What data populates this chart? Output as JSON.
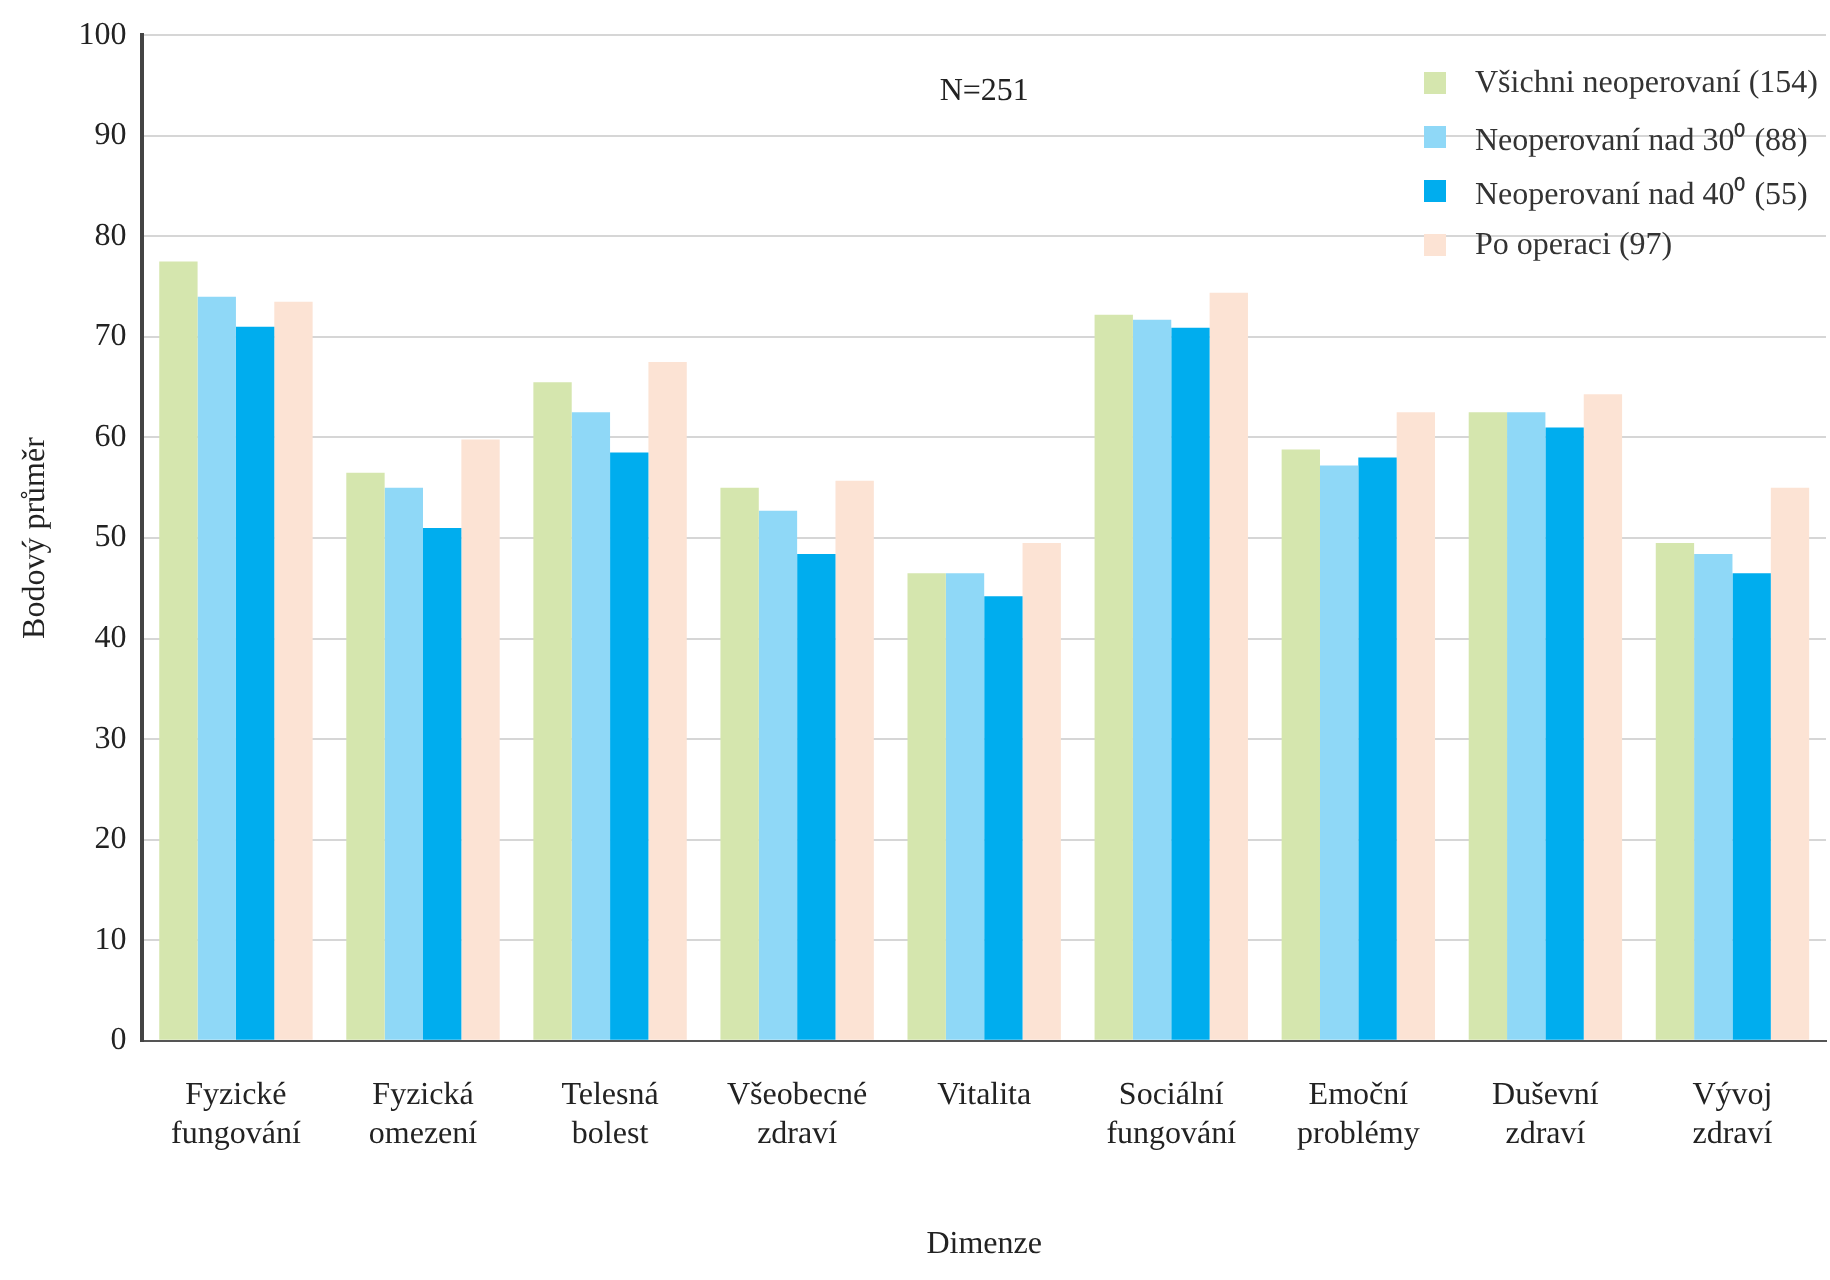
{
  "chart_data": {
    "type": "bar",
    "xlabel": "Dimenze",
    "ylabel": "Bodový průměr",
    "annotations": [
      "N=251"
    ],
    "categories": [
      "Fyzické fungování",
      "Fyzická omezení",
      "Telesná bolest",
      "Všeobecné zdraví",
      "Vitalita",
      "Sociální fungování",
      "Emoční problémy",
      "Duševní zdraví",
      "Vývoj zdraví"
    ],
    "series": [
      {
        "name": "Všichni neoperovaní (154)",
        "color": "#d5e6ae",
        "values": [
          77.5,
          56.5,
          65.5,
          55,
          46.5,
          72.2,
          58.8,
          62.5,
          49.5
        ]
      },
      {
        "name": "Neoperovaní nad 30⁰ (88)",
        "color": "#8fd8f7",
        "values": [
          74,
          55,
          62.5,
          52.7,
          46.5,
          71.7,
          57.2,
          62.5,
          48.4
        ]
      },
      {
        "name": "Neoperovaní nad 40⁰ (55)",
        "color": "#00adee",
        "values": [
          71,
          51,
          58.5,
          48.4,
          44.2,
          70.9,
          58,
          61,
          46.5
        ]
      },
      {
        "name": "Po operaci (97)",
        "color": "#fce3d4",
        "values": [
          73.5,
          59.8,
          67.5,
          55.7,
          49.5,
          74.4,
          62.5,
          64.3,
          55
        ]
      }
    ],
    "ylim": [
      0,
      100
    ],
    "yticks": [
      0,
      10,
      20,
      30,
      40,
      50,
      60,
      70,
      80,
      90,
      100
    ],
    "grid": "y",
    "legend": "top right"
  }
}
